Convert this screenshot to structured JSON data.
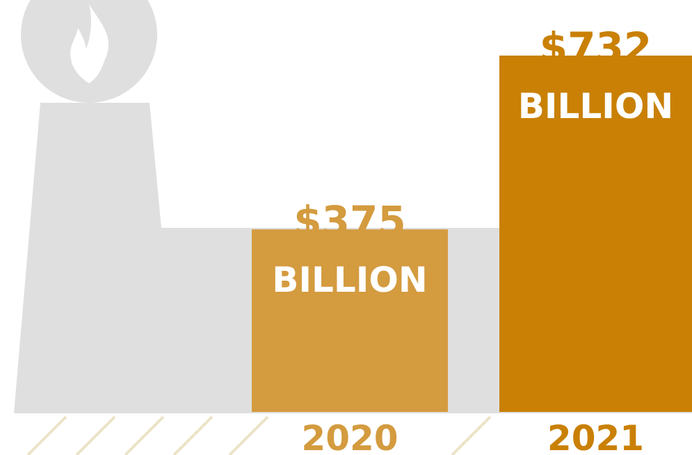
{
  "chart_data": {
    "type": "bar",
    "categories": [
      "2020",
      "2021"
    ],
    "values": [
      375,
      732
    ],
    "value_labels": [
      "$375",
      "$732"
    ],
    "unit_label": "BILLION",
    "title": "",
    "xlabel": "",
    "ylabel": "",
    "ylim": [
      0,
      732
    ],
    "grid": false,
    "legend": "none",
    "colors": [
      "#d49b3f",
      "#c98004"
    ]
  },
  "decor": {
    "icon": "factory-with-flame-icon",
    "icon_color": "#dfdfdf",
    "hatch_color": "#ece3c8"
  }
}
